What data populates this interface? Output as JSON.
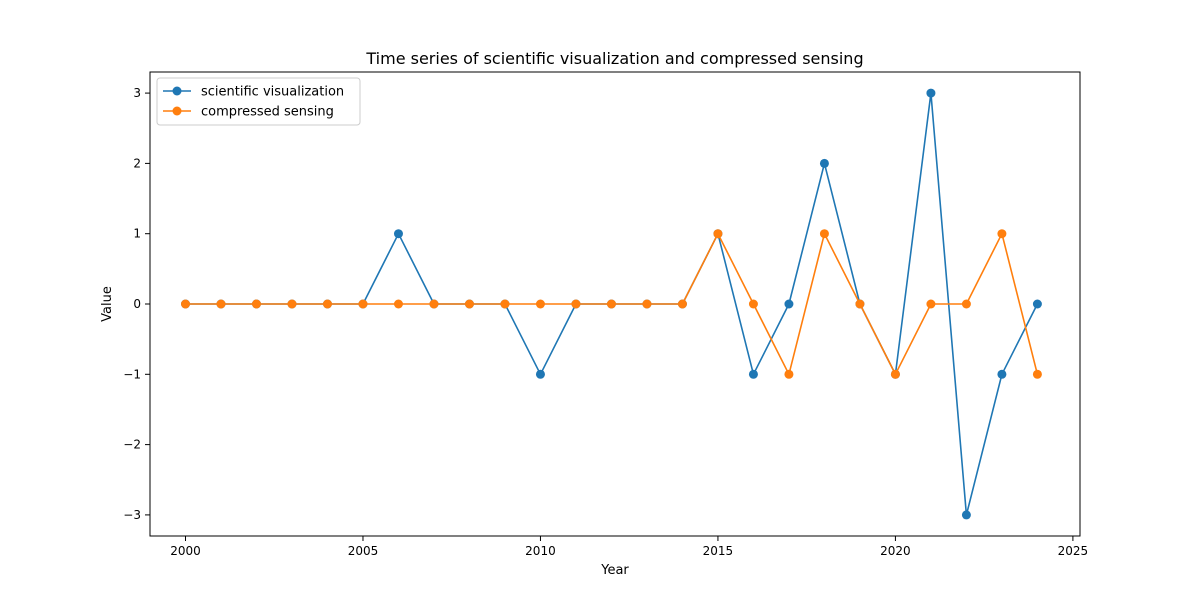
{
  "chart_data": {
    "type": "line",
    "title": "Time series of scientific visualization and compressed sensing",
    "xlabel": "Year",
    "ylabel": "Value",
    "xlim": [
      1999.0,
      2025.2
    ],
    "ylim": [
      -3.3,
      3.3
    ],
    "xticks": [
      2000,
      2005,
      2010,
      2015,
      2020,
      2025
    ],
    "yticks": [
      -3,
      -2,
      -1,
      0,
      1,
      2,
      3
    ],
    "ytick_labels": [
      "−3",
      "−2",
      "−1",
      "0",
      "1",
      "2",
      "3"
    ],
    "x": [
      2000,
      2001,
      2002,
      2003,
      2004,
      2005,
      2006,
      2007,
      2008,
      2009,
      2010,
      2011,
      2012,
      2013,
      2014,
      2015,
      2016,
      2017,
      2018,
      2019,
      2020,
      2021,
      2022,
      2023,
      2024
    ],
    "legend_position": "top-left",
    "grid": false,
    "series": [
      {
        "name": "scientific visualization",
        "color": "#1f77b4",
        "marker": "circle",
        "values": [
          0,
          0,
          0,
          0,
          0,
          0,
          1,
          0,
          0,
          0,
          -1,
          0,
          0,
          0,
          0,
          1,
          -1,
          0,
          2,
          0,
          -1,
          3,
          -3,
          -1,
          0
        ]
      },
      {
        "name": "compressed sensing",
        "color": "#ff7f0e",
        "marker": "circle",
        "values": [
          0,
          0,
          0,
          0,
          0,
          0,
          0,
          0,
          0,
          0,
          0,
          0,
          0,
          0,
          0,
          1,
          0,
          -1,
          1,
          0,
          -1,
          0,
          0,
          1,
          -1
        ]
      }
    ]
  }
}
